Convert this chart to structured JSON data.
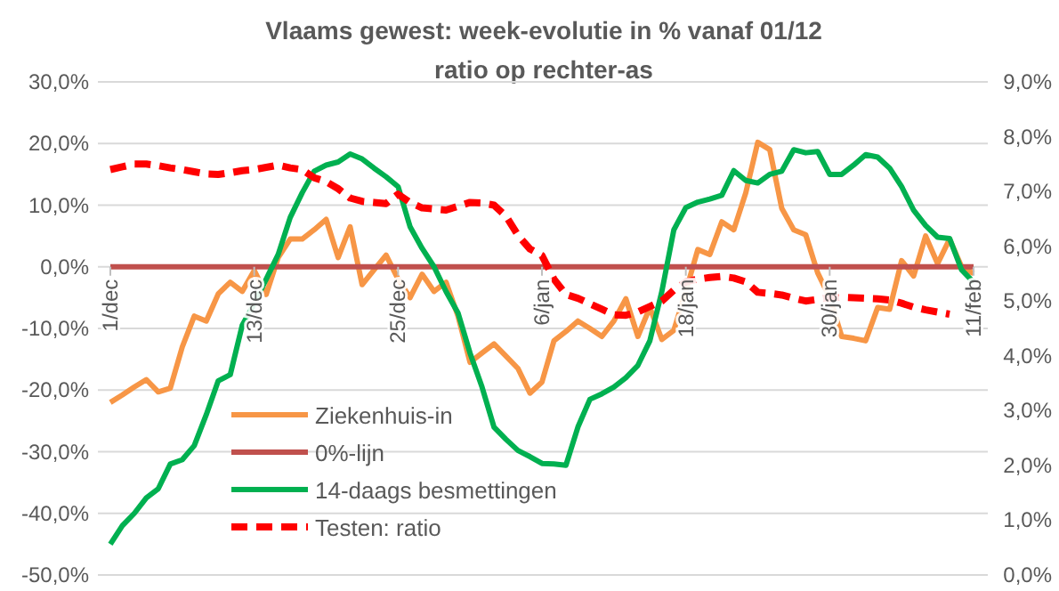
{
  "chart_data": {
    "type": "line",
    "title": "Vlaams gewest:  week-evolutie in %  vanaf 01/12",
    "subtitle": "ratio op rechter-as",
    "categories": [
      "1/dec",
      null,
      null,
      null,
      null,
      null,
      null,
      null,
      null,
      null,
      null,
      null,
      "13/dec",
      null,
      null,
      null,
      null,
      null,
      null,
      null,
      null,
      null,
      null,
      null,
      "25/dec",
      null,
      null,
      null,
      null,
      null,
      null,
      null,
      null,
      null,
      null,
      null,
      "6/jan",
      null,
      null,
      null,
      null,
      null,
      null,
      null,
      null,
      null,
      null,
      null,
      "18/jan",
      null,
      null,
      null,
      null,
      null,
      null,
      null,
      null,
      null,
      null,
      null,
      "30/jan",
      null,
      null,
      null,
      null,
      null,
      null,
      null,
      null,
      null,
      null,
      null,
      "11/feb"
    ],
    "ylim": [
      -50,
      30
    ],
    "yticks": [
      {
        "value": -50,
        "label": "-50,0%"
      },
      {
        "value": -40,
        "label": "-40,0%"
      },
      {
        "value": -30,
        "label": "-30,0%"
      },
      {
        "value": -20,
        "label": "-20,0%"
      },
      {
        "value": -10,
        "label": "-10,0%"
      },
      {
        "value": 0,
        "label": "0,0%"
      },
      {
        "value": 10,
        "label": "10,0%"
      },
      {
        "value": 20,
        "label": "20,0%"
      },
      {
        "value": 30,
        "label": "30,0%"
      }
    ],
    "y2lim": [
      0,
      9
    ],
    "y2ticks": [
      {
        "value": 0,
        "label": "0,0%"
      },
      {
        "value": 1,
        "label": "1,0%"
      },
      {
        "value": 2,
        "label": "2,0%"
      },
      {
        "value": 3,
        "label": "3,0%"
      },
      {
        "value": 4,
        "label": "4,0%"
      },
      {
        "value": 5,
        "label": "5,0%"
      },
      {
        "value": 6,
        "label": "6,0%"
      },
      {
        "value": 7,
        "label": "7,0%"
      },
      {
        "value": 8,
        "label": "8,0%"
      },
      {
        "value": 9,
        "label": "9,0%"
      }
    ],
    "grid": "y",
    "legend": "bottom left",
    "series": [
      {
        "name": "Ziekenhuis-in",
        "color": "#f79646",
        "values": [
          -22,
          -20.8,
          -19.5,
          -18.3,
          -20.3,
          -19.7,
          -13,
          -8,
          -8.8,
          -4.4,
          -2.5,
          -4,
          -0.6,
          -4.5,
          1.5,
          4.5,
          4.5,
          6,
          7.7,
          1.5,
          6.5,
          -2.9,
          -0.5,
          1.9,
          -2,
          -5,
          -1.2,
          -4,
          -2.5,
          -8,
          -15.5,
          -14,
          -12.5,
          -14.5,
          -16.5,
          -20.5,
          -18.7,
          -12,
          -10.5,
          -8.8,
          -10,
          -11.3,
          -8.8,
          -5.2,
          -11.3,
          -6.6,
          -11.8,
          -10.3,
          -4,
          2.8,
          2,
          7.3,
          6,
          12,
          20.2,
          19,
          9.5,
          6,
          5.2,
          -1,
          -5,
          -11.3,
          -11.6,
          -12,
          -6.6,
          -6.9,
          1,
          -1.5,
          5,
          0.5,
          4.5,
          0,
          -1.1
        ]
      },
      {
        "name": "0%-lijn",
        "color": "#c0504d",
        "values": [
          0,
          0,
          0,
          0,
          0,
          0,
          0,
          0,
          0,
          0,
          0,
          0,
          0,
          0,
          0,
          0,
          0,
          0,
          0,
          0,
          0,
          0,
          0,
          0,
          0,
          0,
          0,
          0,
          0,
          0,
          0,
          0,
          0,
          0,
          0,
          0,
          0,
          0,
          0,
          0,
          0,
          0,
          0,
          0,
          0,
          0,
          0,
          0,
          0,
          0,
          0,
          0,
          0,
          0,
          0,
          0,
          0,
          0,
          0,
          0,
          0,
          0,
          0,
          0,
          0,
          0,
          0,
          0,
          0,
          0,
          0,
          0,
          0
        ]
      },
      {
        "name": "14-daags besmettingen",
        "color": "#00b050",
        "values": [
          -45,
          -42,
          -40,
          -37.5,
          -36,
          -32,
          -31.3,
          -29,
          -24,
          -18.5,
          -17.5,
          -9.5,
          -6,
          -2,
          2,
          8,
          12,
          15.5,
          16.5,
          17,
          18.3,
          17.5,
          16,
          14.6,
          13,
          6.5,
          3,
          0,
          -4,
          -7.5,
          -14,
          -19.5,
          -26,
          -28,
          -29.8,
          -30.8,
          -31.9,
          -32,
          -32.2,
          -26,
          -21.5,
          -20.6,
          -19.5,
          -18,
          -16,
          -12,
          -4,
          6,
          9.6,
          10.5,
          11,
          11.6,
          15.6,
          14,
          13.6,
          15,
          15.5,
          19,
          18.5,
          18.7,
          15,
          15,
          16.5,
          18.2,
          17.8,
          16,
          13,
          9.2,
          6.7,
          4.8,
          4.6,
          -0.5,
          -2.5
        ]
      },
      {
        "name": "Testen: ratio",
        "color": "#ff0000",
        "axis": "y2",
        "line_style": "dashed",
        "values": [
          7.4,
          7.45,
          7.5,
          7.5,
          7.47,
          7.43,
          7.4,
          7.36,
          7.32,
          7.31,
          7.34,
          7.38,
          7.4,
          7.44,
          7.48,
          7.43,
          7.4,
          7.25,
          7.18,
          7.05,
          6.88,
          6.82,
          6.8,
          6.78,
          6.95,
          6.8,
          6.7,
          6.68,
          6.66,
          6.73,
          6.8,
          6.79,
          6.75,
          6.55,
          6.2,
          5.95,
          5.83,
          5.4,
          5.12,
          5.05,
          4.95,
          4.85,
          4.75,
          4.74,
          4.8,
          4.9,
          5,
          5.2,
          5.35,
          5.4,
          5.43,
          5.45,
          5.42,
          5.35,
          5.16,
          5.14,
          5.11,
          5.05,
          5,
          5.03,
          5.06,
          5.07,
          5.06,
          5.05,
          5.04,
          5.02,
          4.96,
          4.89,
          4.84,
          4.8,
          4.76,
          null,
          null
        ]
      }
    ]
  }
}
